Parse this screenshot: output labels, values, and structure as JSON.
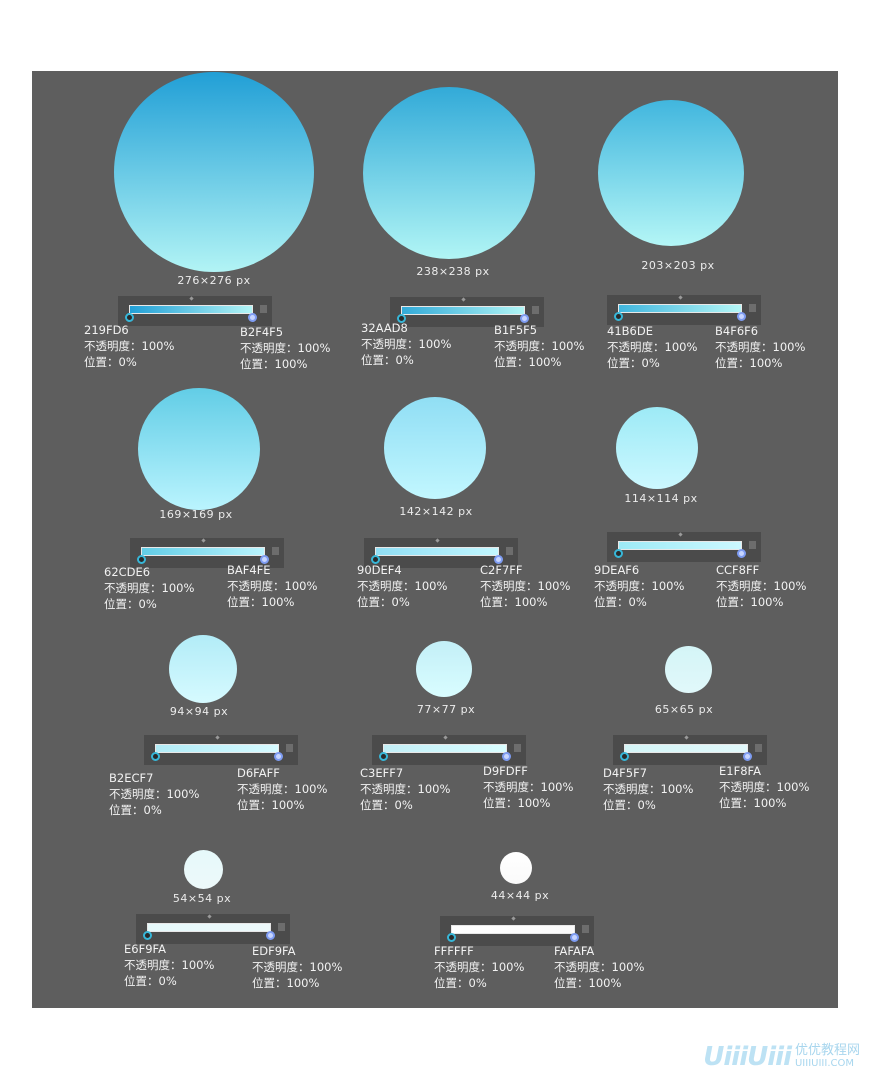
{
  "labels": {
    "opacity": "不透明度：100%",
    "pos_left": "位置：0%",
    "pos_right": "位置：100%"
  },
  "swatches": [
    {
      "size": "276×276 px",
      "from": "219FD6",
      "to": "B2F4F5",
      "top_color": "#219FD6",
      "bottom_color": "#B2F4F5"
    },
    {
      "size": "238×238 px",
      "from": "32AAD8",
      "to": "B1F5F5",
      "top_color": "#32AAD8",
      "bottom_color": "#B1F5F5"
    },
    {
      "size": "203×203 px",
      "from": "41B6DE",
      "to": "B4F6F6",
      "top_color": "#41B6DE",
      "bottom_color": "#B4F6F6"
    },
    {
      "size": "169×169 px",
      "from": "62CDE6",
      "to": "BAF4FE",
      "top_color": "#62CDE6",
      "bottom_color": "#BAF4FE"
    },
    {
      "size": "142×142 px",
      "from": "90DEF4",
      "to": "C2F7FF",
      "top_color": "#90DEF4",
      "bottom_color": "#C2F7FF"
    },
    {
      "size": "114×114 px",
      "from": "9DEAF6",
      "to": "CCF8FF",
      "top_color": "#9DEAF6",
      "bottom_color": "#CCF8FF"
    },
    {
      "size": "94×94 px",
      "from": "B2ECF7",
      "to": "D6FAFF",
      "top_color": "#B2ECF7",
      "bottom_color": "#D6FAFF"
    },
    {
      "size": "77×77 px",
      "from": "C3EFF7",
      "to": "D9FDFF",
      "top_color": "#C3EFF7",
      "bottom_color": "#D9FDFF"
    },
    {
      "size": "65×65 px",
      "from": "D4F5F7",
      "to": "E1F8FA",
      "top_color": "#D4F5F7",
      "bottom_color": "#E1F8FA"
    },
    {
      "size": "54×54 px",
      "from": "E6F9FA",
      "to": "EDF9FA",
      "top_color": "#E6F9FA",
      "bottom_color": "#EDF9FA"
    },
    {
      "size": "44×44 px",
      "from": "FFFFFF",
      "to": "FAFAFA",
      "top_color": "#FFFFFF",
      "bottom_color": "#FAFAFA"
    }
  ],
  "watermark": {
    "logo": "UiiiUiii",
    "cn": "优优教程网",
    "url": "UIIIUIII.COM"
  }
}
